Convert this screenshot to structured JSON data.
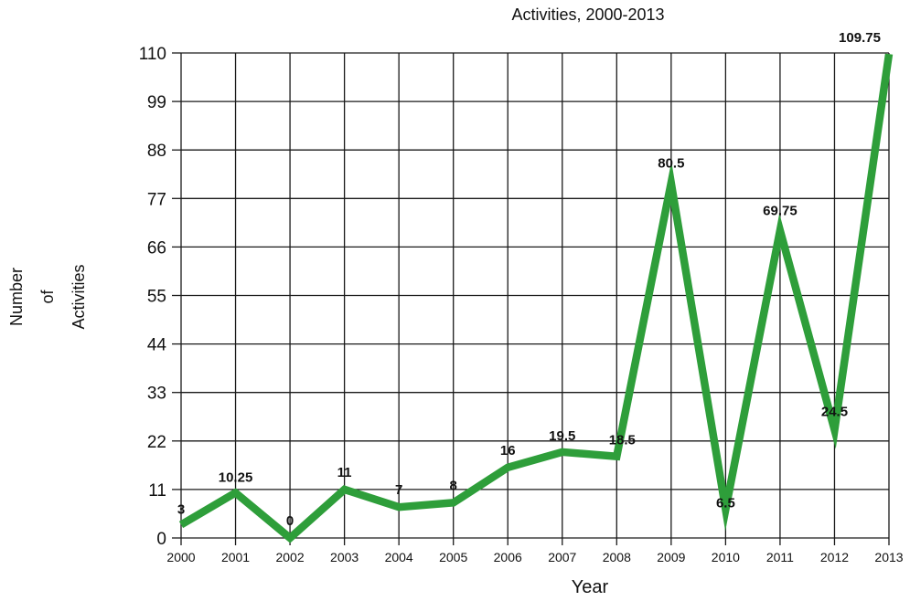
{
  "chart_data": {
    "type": "line",
    "title": "Activities, 2000-2013",
    "xlabel": "Year",
    "ylabel_lines": [
      "Number",
      "of",
      "Activities"
    ],
    "categories": [
      "2000",
      "2001",
      "2002",
      "2003",
      "2004",
      "2005",
      "2006",
      "2007",
      "2008",
      "2009",
      "2010",
      "2011",
      "2012",
      "2013"
    ],
    "series": [
      {
        "values": [
          3,
          10.25,
          0,
          11,
          7,
          8,
          16,
          19.5,
          18.5,
          80.5,
          6.5,
          69.75,
          24.5,
          109.75
        ],
        "color": "#2e9e3a"
      }
    ],
    "data_labels": [
      "3",
      "10.25",
      "0",
      "11",
      "7",
      "8",
      "16",
      "19.5",
      "18.5",
      "80.5",
      "6.5",
      "69.75",
      "24.5",
      "109.75"
    ],
    "yticks": [
      "0",
      "11",
      "22",
      "33",
      "44",
      "55",
      "66",
      "77",
      "88",
      "99",
      "110"
    ],
    "ylim": [
      0,
      110
    ],
    "grid": true,
    "legend": "none"
  }
}
